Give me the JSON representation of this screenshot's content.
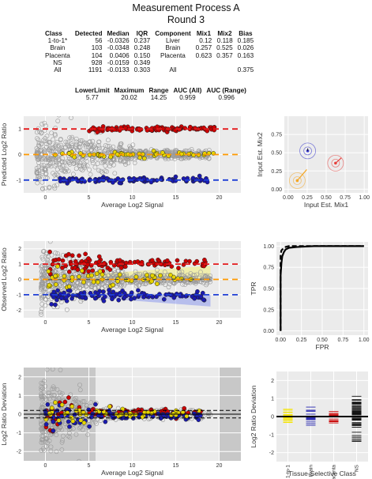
{
  "header": {
    "title": "Measurement Process A",
    "subtitle": "Round 3"
  },
  "summary_table": {
    "headers": [
      "Class",
      "Detected",
      "Median",
      "IQR",
      "Component",
      "Mix1",
      "Mix2",
      "Bias"
    ],
    "rows": [
      [
        "1-to-1*",
        "56",
        "-0.0326",
        "0.237",
        "Liver",
        "0.12",
        "0.118",
        "0.185"
      ],
      [
        "Brain",
        "103",
        "-0.0348",
        "0.248",
        "Brain",
        "0.257",
        "0.525",
        "0.026"
      ],
      [
        "Placenta",
        "104",
        "0.0406",
        "0.150",
        "Placenta",
        "0.623",
        "0.357",
        "0.163"
      ],
      [
        "NS",
        "928",
        "-0.0159",
        "0.349",
        "",
        "",
        "",
        ""
      ],
      [
        "All",
        "1191",
        "-0.0133",
        "0.303",
        "All",
        "",
        "",
        "0.375"
      ]
    ]
  },
  "limits_table": {
    "headers": [
      "LowerLimit",
      "Maximum",
      "Range",
      "AUC (All)",
      "AUC (Range)"
    ],
    "values": [
      "5.77",
      "20.02",
      "14.25",
      "0.959",
      "0.996"
    ]
  },
  "chart_data": [
    {
      "type": "scatter",
      "id": "predicted",
      "xlabel": "Average Log2 Signal",
      "ylabel": "Predicted Log2 Ratio",
      "xlim": [
        -2.5,
        22.5
      ],
      "ylim": [
        -1.5,
        1.5
      ],
      "xticks": [
        0,
        5,
        10,
        15,
        20
      ],
      "yticks": [
        -1,
        0,
        1
      ],
      "reference_lines": [
        {
          "y": 1,
          "color": "#e41a1c"
        },
        {
          "y": 0,
          "color": "#ff9900"
        },
        {
          "y": -1,
          "color": "#1f3fd6"
        }
      ],
      "series": [
        {
          "color": "#cc0000",
          "x_range": [
            5,
            19.5
          ],
          "y_center": 1.0,
          "spread": 0.05
        },
        {
          "color": "#e6d400",
          "x_range": [
            1,
            19.5
          ],
          "y_center": 0.0,
          "spread": 0.08
        },
        {
          "color": "#1a1ab0",
          "x_range": [
            1,
            19
          ],
          "y_center": -1.0,
          "spread": 0.05
        },
        {
          "color": "#9a9a9a",
          "x_range": [
            -1,
            19
          ],
          "y_center": 0.0,
          "spread": 0.55
        }
      ]
    },
    {
      "type": "scatter",
      "id": "mix",
      "xlabel": "Input Est. Mix1",
      "ylabel": "Input Est. Mix2",
      "xlim": [
        -0.05,
        1.05
      ],
      "ylim": [
        -0.05,
        1.0
      ],
      "xticks": [
        0.0,
        0.25,
        0.5,
        0.75,
        1.0
      ],
      "yticks": [
        0.0,
        0.25,
        0.5,
        0.75
      ],
      "tick_labels_x": [
        "0.00",
        "0.25",
        "0.50",
        "0.75",
        "1.00"
      ],
      "tick_labels_y": [
        "0.00",
        "0.25",
        "0.50",
        "0.75"
      ],
      "components": [
        {
          "name": "Brain",
          "x": 0.257,
          "y": 0.525,
          "color": "#3333cc"
        },
        {
          "name": "Placenta",
          "x": 0.623,
          "y": 0.357,
          "color": "#e6413d"
        },
        {
          "name": "Liver",
          "x": 0.12,
          "y": 0.118,
          "color": "#f5a623"
        }
      ]
    },
    {
      "type": "scatter",
      "id": "observed",
      "xlabel": "Average Log2 Signal",
      "ylabel": "Observed Log2 Ratio",
      "xlim": [
        -2.5,
        22.5
      ],
      "ylim": [
        -2.5,
        2.5
      ],
      "xticks": [
        0,
        5,
        10,
        15,
        20
      ],
      "yticks": [
        -2,
        -1,
        0,
        1,
        2
      ],
      "reference_lines": [
        {
          "y": 1,
          "color": "#e41a1c"
        },
        {
          "y": 0,
          "color": "#ff9900"
        },
        {
          "y": -1,
          "color": "#1f3fd6"
        }
      ]
    },
    {
      "type": "line",
      "id": "roc",
      "xlabel": "FPR",
      "ylabel": "TPR",
      "xlim": [
        -0.05,
        1.05
      ],
      "ylim": [
        -0.05,
        1.05
      ],
      "xticks": [
        0.0,
        0.25,
        0.5,
        0.75,
        1.0
      ],
      "yticks": [
        0.0,
        0.25,
        0.5,
        0.75,
        1.0
      ],
      "tick_labels": [
        "0.00",
        "0.25",
        "0.50",
        "0.75",
        "1.00"
      ],
      "series": [
        {
          "style": "solid",
          "x": [
            0,
            0.0,
            0.01,
            0.02,
            0.04,
            0.06,
            0.1,
            0.2,
            0.4,
            0.6,
            0.8,
            1.0
          ],
          "y": [
            0,
            0.65,
            0.8,
            0.88,
            0.93,
            0.96,
            0.98,
            0.99,
            1.0,
            1.0,
            1.0,
            1.0
          ]
        },
        {
          "style": "dashed",
          "x": [
            0,
            0.0,
            0.01,
            0.03,
            0.06,
            0.1,
            0.2,
            0.4,
            1.0
          ],
          "y": [
            0,
            0.9,
            0.95,
            0.97,
            0.99,
            1.0,
            1.0,
            1.0,
            1.0
          ]
        }
      ]
    },
    {
      "type": "scatter",
      "id": "deviation",
      "xlabel": "Average Log2 Signal",
      "ylabel": "Log2 Ratio Deviation",
      "xlim": [
        -2.5,
        22.5
      ],
      "ylim": [
        -2.5,
        2.5
      ],
      "xticks": [
        0,
        5,
        10,
        15,
        20
      ],
      "yticks": [
        -2,
        -1,
        0,
        1,
        2
      ],
      "shaded_ranges": [
        [
          -2.5,
          5.77
        ],
        [
          20.02,
          22.5
        ]
      ]
    },
    {
      "type": "bar",
      "id": "class_deviation",
      "xlabel": "Tissue-Selective Class",
      "ylabel": "Log2 Ratio Deviation",
      "categories": [
        "1-to-1",
        "Brain",
        "Placenta",
        "NS"
      ],
      "ylim": [
        -2.5,
        2.5
      ],
      "yticks": [
        -2,
        -1,
        0,
        1,
        2
      ],
      "colors": [
        "#f5e400",
        "#2a2ab0",
        "#cc1111",
        "#111111"
      ]
    }
  ]
}
